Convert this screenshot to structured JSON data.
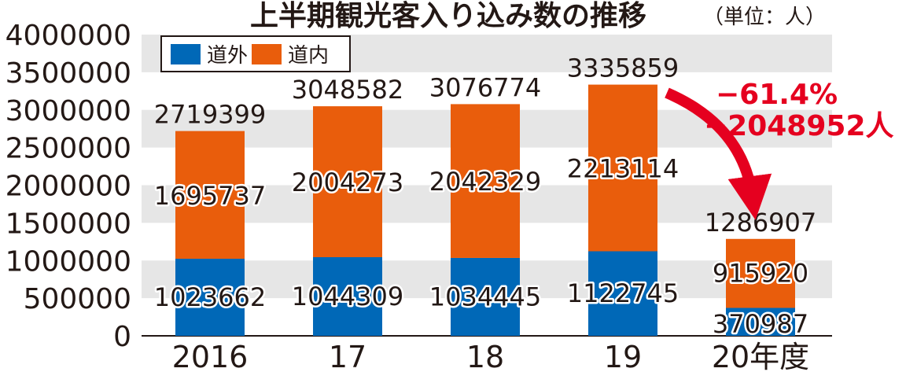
{
  "chart_data": {
    "type": "bar",
    "stacked": true,
    "title": "上半期観光客入り込み数の推移",
    "unit_note": "（単位：人）",
    "categories": [
      "2016",
      "17",
      "18",
      "19",
      "20年度"
    ],
    "series": [
      {
        "name": "道外",
        "values": [
          1023662,
          1044309,
          1034445,
          1122745,
          370987
        ]
      },
      {
        "name": "道内",
        "values": [
          1695737,
          2004273,
          2042329,
          2213114,
          915920
        ]
      }
    ],
    "totals": [
      2719399,
      3048582,
      3076774,
      3335859,
      1286907
    ],
    "ylim": [
      0,
      4000000
    ],
    "yticks": [
      0,
      500000,
      1000000,
      1500000,
      2000000,
      2500000,
      3000000,
      3500000,
      4000000
    ],
    "grid": "alternating gray bands",
    "legend_position": "top-left",
    "annotation": {
      "percent": "−61.4%",
      "difference": "−2048952人"
    },
    "colors": {
      "道外": "#0068b7",
      "道内": "#e95d0c",
      "band": "#e6e6e6",
      "arrow": "#e5001f"
    }
  }
}
